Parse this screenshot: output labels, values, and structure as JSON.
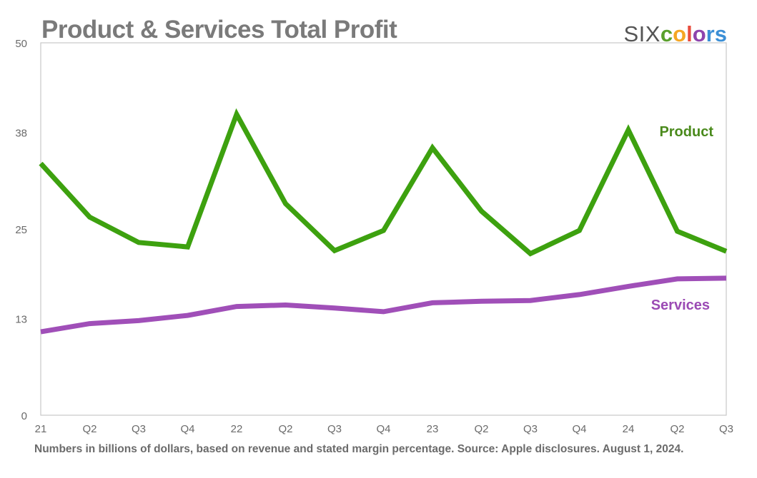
{
  "title": "Product & Services Total Profit",
  "logo": {
    "six": "SIX",
    "colors_letters": [
      "c",
      "o",
      "l",
      "o",
      "r",
      "s"
    ],
    "letter_colors": [
      "#5aa02c",
      "#f5a623",
      "#e84c3d",
      "#8e44ad",
      "#3b8fd6",
      "#3b8fd6"
    ]
  },
  "footnote": "Numbers in billions of dollars, based on revenue and stated margin percentage. Source: Apple disclosures. August 1, 2024.",
  "chart_data": {
    "type": "line",
    "categories": [
      "21",
      "Q2",
      "Q3",
      "Q4",
      "22",
      "Q2",
      "Q3",
      "Q4",
      "23",
      "Q2",
      "Q3",
      "Q4",
      "24",
      "Q2",
      "Q3"
    ],
    "ylim": [
      0,
      50
    ],
    "yticks": [
      0,
      13,
      25,
      38,
      50
    ],
    "grid": false,
    "series": [
      {
        "name": "Product",
        "color": "#3da10f",
        "label_color": "#4a8a1c",
        "values": [
          33.8,
          26.6,
          23.2,
          22.6,
          40.4,
          28.4,
          22.1,
          24.8,
          35.9,
          27.4,
          21.7,
          24.8,
          38.3,
          24.7,
          22.0
        ]
      },
      {
        "name": "Services",
        "color": "#a04fb8",
        "label_color": "#9b4ab4",
        "values": [
          11.2,
          12.3,
          12.7,
          13.4,
          14.6,
          14.8,
          14.4,
          13.9,
          15.1,
          15.3,
          15.4,
          16.2,
          17.3,
          18.3,
          18.4
        ]
      }
    ]
  }
}
